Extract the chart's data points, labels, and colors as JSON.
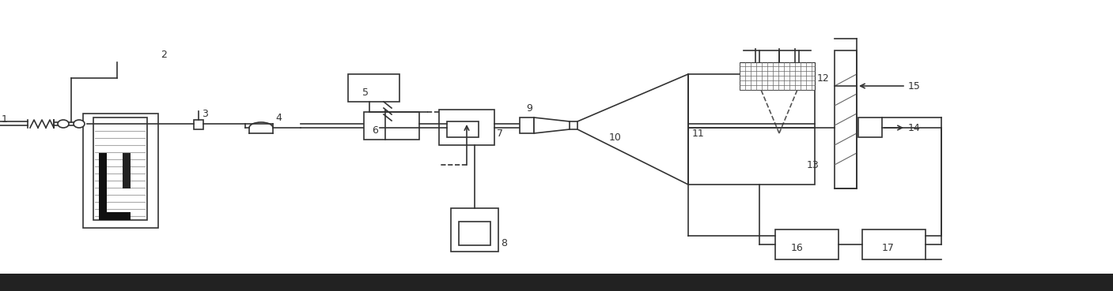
{
  "bg_color": "#ffffff",
  "line_color": "#333333",
  "dark_color": "#111111",
  "gray_color": "#888888",
  "floor_color": "#222222",
  "fig_width": 14.07,
  "fig_height": 3.69,
  "dpi": 100
}
